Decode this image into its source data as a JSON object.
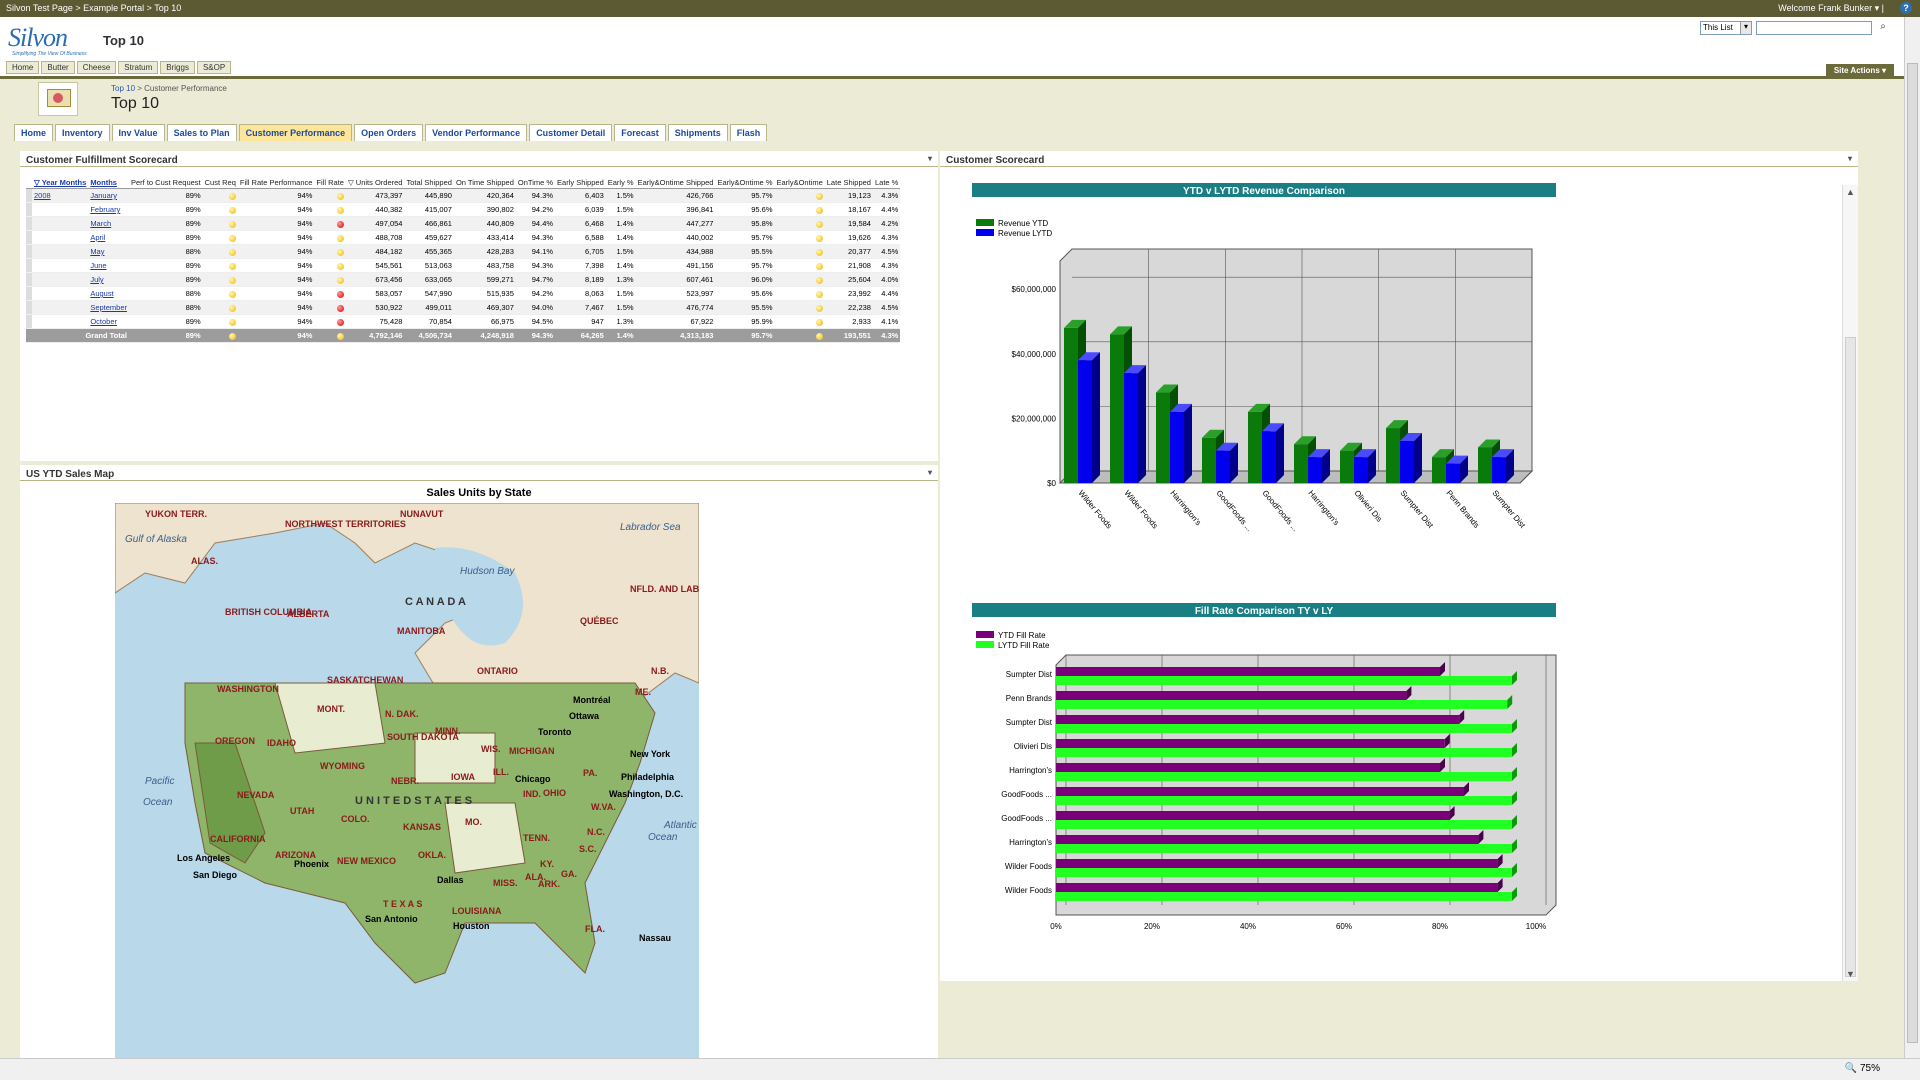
{
  "topbar": {
    "breadcrumb": "Silvon Test Page > Example Portal > Top 10",
    "welcome": "Welcome Frank Bunker ▾ |",
    "help": "?"
  },
  "header": {
    "logo": "Silvon",
    "tagline": "Simplifying The View Of Business",
    "site_title": "Top 10",
    "nav": [
      "Home",
      "Butter",
      "Cheese",
      "Stratum",
      "Briggs",
      "S&OP"
    ],
    "search_scope": "This List",
    "site_actions": "Site Actions ▾"
  },
  "page": {
    "breadcrumb_link": "Top 10",
    "breadcrumb_sep": " > ",
    "breadcrumb_current": "Customer Performance",
    "title": "Top 10"
  },
  "tabs": [
    "Home",
    "Inventory",
    "Inv Value",
    "Sales to Plan",
    "Customer Performance",
    "Open Orders",
    "Vendor Performance",
    "Customer Detail",
    "Forecast",
    "Shipments",
    "Flash"
  ],
  "active_tab": "Customer Performance",
  "scorecard": {
    "title": "Customer Fulfillment Scorecard",
    "columns": [
      "▽ Year Months",
      "Months",
      "Perf to Cust Request",
      "Cust Req",
      "Fill Rate Performance",
      "Fill Rate",
      "▽ Units Ordered",
      "Total Shipped",
      "On Time Shipped",
      "OnTime %",
      "Early Shipped",
      "Early %",
      "Early&Ontime Shipped",
      "Early&Ontime %",
      "Early&Ontime",
      "Late Shipped",
      "Late %"
    ],
    "year": "2008",
    "rows": [
      {
        "month": "January",
        "perf": "89%",
        "cr": "y",
        "fill": "94%",
        "fr": "y",
        "ordered": "473,397",
        "shipped": "445,890",
        "ontime": "420,364",
        "ontime_pct": "94.3%",
        "early": "6,403",
        "early_pct": "1.5%",
        "eo": "426,766",
        "eo_pct": "95.7%",
        "eo_i": "y",
        "late": "19,123",
        "late_pct": "4.3%"
      },
      {
        "month": "February",
        "perf": "89%",
        "cr": "y",
        "fill": "94%",
        "fr": "y",
        "ordered": "440,382",
        "shipped": "415,007",
        "ontime": "390,802",
        "ontime_pct": "94.2%",
        "early": "6,039",
        "early_pct": "1.5%",
        "eo": "396,841",
        "eo_pct": "95.6%",
        "eo_i": "y",
        "late": "18,167",
        "late_pct": "4.4%"
      },
      {
        "month": "March",
        "perf": "89%",
        "cr": "y",
        "fill": "94%",
        "fr": "r",
        "ordered": "497,054",
        "shipped": "466,861",
        "ontime": "440,809",
        "ontime_pct": "94.4%",
        "early": "6,468",
        "early_pct": "1.4%",
        "eo": "447,277",
        "eo_pct": "95.8%",
        "eo_i": "y",
        "late": "19,584",
        "early2": "",
        "late_pct": "4.2%"
      },
      {
        "month": "April",
        "perf": "89%",
        "cr": "y",
        "fill": "94%",
        "fr": "y",
        "ordered": "488,708",
        "shipped": "459,627",
        "ontime": "433,414",
        "ontime_pct": "94.3%",
        "early": "6,588",
        "early_pct": "1.4%",
        "eo": "440,002",
        "eo_pct": "95.7%",
        "eo_i": "y",
        "late": "19,626",
        "late_pct": "4.3%"
      },
      {
        "month": "May",
        "perf": "88%",
        "cr": "y",
        "fill": "94%",
        "fr": "y",
        "ordered": "484,182",
        "shipped": "455,365",
        "ontime": "428,283",
        "ontime_pct": "94.1%",
        "early": "6,705",
        "early_pct": "1.5%",
        "eo": "434,988",
        "eo_pct": "95.5%",
        "eo_i": "y",
        "late": "20,377",
        "late_pct": "4.5%"
      },
      {
        "month": "June",
        "perf": "89%",
        "cr": "y",
        "fill": "94%",
        "fr": "y",
        "ordered": "545,561",
        "shipped": "513,063",
        "ontime": "483,758",
        "ontime_pct": "94.3%",
        "early": "7,398",
        "early_pct": "1.4%",
        "eo": "491,156",
        "eo_pct": "95.7%",
        "eo_i": "y",
        "late": "21,908",
        "late_pct": "4.3%"
      },
      {
        "month": "July",
        "perf": "89%",
        "cr": "y",
        "fill": "94%",
        "fr": "y",
        "ordered": "673,456",
        "shipped": "633,065",
        "ontime": "599,271",
        "ontime_pct": "94.7%",
        "early": "8,189",
        "early_pct": "1.3%",
        "eo": "607,461",
        "eo_pct": "96.0%",
        "eo_i": "y",
        "late": "25,604",
        "late_pct": "4.0%"
      },
      {
        "month": "August",
        "perf": "88%",
        "cr": "y",
        "fill": "94%",
        "fr": "r",
        "ordered": "583,057",
        "shipped": "547,990",
        "ontime": "515,935",
        "ontime_pct": "94.2%",
        "early": "8,063",
        "early_pct": "1.5%",
        "eo": "523,997",
        "eo_pct": "95.6%",
        "eo_i": "y",
        "late": "23,992",
        "late_pct": "4.4%"
      },
      {
        "month": "September",
        "perf": "88%",
        "cr": "y",
        "fill": "94%",
        "fr": "r",
        "ordered": "530,922",
        "shipped": "499,011",
        "ontime": "469,307",
        "ontime_pct": "94.0%",
        "early": "7,467",
        "early_pct": "1.5%",
        "eo": "476,774",
        "eo_pct": "95.5%",
        "eo_i": "y",
        "late": "22,238",
        "late_pct": "4.5%"
      },
      {
        "month": "October",
        "perf": "89%",
        "cr": "y",
        "fill": "94%",
        "fr": "r",
        "ordered": "75,428",
        "shipped": "70,854",
        "ontime": "66,975",
        "ontime_pct": "94.5%",
        "early": "947",
        "early_pct": "1.3%",
        "eo": "67,922",
        "eo_pct": "95.9%",
        "eo_i": "y",
        "late": "2,933",
        "late_pct": "4.1%"
      }
    ],
    "total": {
      "label": "Grand Total",
      "perf": "89%",
      "fill": "94%",
      "ordered": "4,792,146",
      "shipped": "4,506,734",
      "ontime": "4,248,918",
      "ontime_pct": "94.3%",
      "early": "64,265",
      "early_pct": "1.4%",
      "eo": "4,313,183",
      "eo_pct": "95.7%",
      "late": "193,551",
      "late_pct": "4.3%"
    }
  },
  "map": {
    "panel_title": "US YTD Sales Map",
    "title": "Sales Units by State",
    "labels": [
      "YUKON TERR.",
      "NORTHWEST TERRITORIES",
      "NUNAVUT",
      "Gulf of Alaska",
      "Labrador Sea",
      "ALAS.",
      "Hudson Bay",
      "C A N A D A",
      "BRITISH COLUMBIA",
      "ALBERTA",
      "MANITOBA",
      "QUÉBEC",
      "NFLD. AND LAB.",
      "SASKATCHEWAN",
      "ONTARIO",
      "N.B.",
      "ME.",
      "WASHINGTON",
      "MONT.",
      "N. DAK.",
      "MINN.",
      "Montréal",
      "Ottawa",
      "Toronto",
      "OREGON",
      "IDAHO",
      "SOUTH DAKOTA",
      "WIS.",
      "MICHIGAN",
      "New York",
      "WYOMING",
      "Pacific",
      "Ocean",
      "IOWA",
      "NEBR.",
      "ILL.",
      "IND.",
      "OHIO",
      "PA.",
      "Philadelphia",
      "NEVADA",
      "UTAH",
      "COLO.",
      "U N I T E D   S T A T E S",
      "Chicago",
      "Washington, D.C.",
      "KANSAS",
      "MO.",
      "W.VA.",
      "CALIFORNIA",
      "TENN.",
      "N.C.",
      "Atlantic",
      "Ocean",
      "KY.",
      "ARIZONA",
      "NEW MEXICO",
      "OKLA.",
      "S.C.",
      "Los Angeles",
      "Phoenix",
      "San Diego",
      "Dallas",
      "ARK.",
      "MISS.",
      "ALA.",
      "GA.",
      "T E X A S",
      "LOUISIANA",
      "San Antonio",
      "Houston",
      "FLA.",
      "Nassau"
    ]
  },
  "revenue_chart": {
    "panel_title": "Customer Scorecard"
  },
  "chart_data": [
    {
      "type": "bar",
      "title": "YTD v LYTD Revenue Comparison",
      "categories": [
        "Wilder Foods",
        "Wilder Foods",
        "Harrington's",
        "GoodFoods ...",
        "GoodFoods ...",
        "Harrington's",
        "Olivieri Dis",
        "Sumpter Dist",
        "Penn Brands",
        "Sumpter Dist"
      ],
      "series": [
        {
          "name": "Revenue YTD",
          "color": "#0a7a0a",
          "values": [
            48000000,
            46000000,
            28000000,
            14000000,
            22000000,
            12000000,
            10000000,
            17000000,
            8000000,
            11000000
          ]
        },
        {
          "name": "Revenue LYTD",
          "color": "#0000ee",
          "values": [
            38000000,
            34000000,
            22000000,
            10000000,
            16000000,
            8000000,
            8000000,
            13000000,
            6000000,
            8000000
          ]
        }
      ],
      "yticks": [
        "$0",
        "$20,000,000",
        "$40,000,000",
        "$60,000,000"
      ],
      "ylim": [
        0,
        65000000
      ],
      "legend": "top-left",
      "grid": true
    },
    {
      "type": "bar",
      "title": "Fill Rate Comparison TY v LY",
      "orientation": "horizontal",
      "categories": [
        "Sumpter Dist",
        "Penn Brands",
        "Sumpter Dist",
        "Olivieri Dis",
        "Harrington's",
        "GoodFoods ...",
        "GoodFoods ...",
        "Harrington's",
        "Wilder Foods",
        "Wilder Foods"
      ],
      "series": [
        {
          "name": "YTD Fill Rate",
          "color": "#7a007a",
          "values": [
            80,
            73,
            84,
            81,
            80,
            85,
            82,
            88,
            92,
            92
          ]
        },
        {
          "name": "LYTD Fill Rate",
          "color": "#22ff22",
          "values": [
            95,
            94,
            95,
            95,
            95,
            95,
            95,
            95,
            95,
            95
          ]
        }
      ],
      "xticks": [
        "0%",
        "20%",
        "40%",
        "60%",
        "80%",
        "100%"
      ],
      "xlim": [
        0,
        100
      ],
      "legend": "top-left",
      "grid": true
    }
  ],
  "status": {
    "zoom": "75%"
  }
}
